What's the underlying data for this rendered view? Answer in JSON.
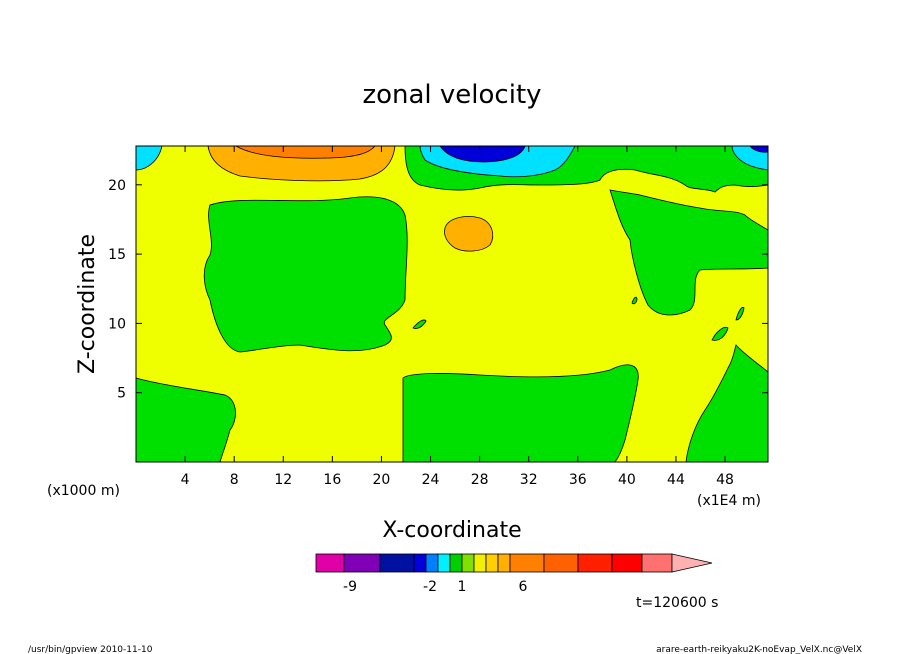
{
  "chart_data": {
    "type": "contour",
    "title": "zonal velocity",
    "xlabel": "X-coordinate",
    "ylabel": "Z-coordinate",
    "x_unit_label": "(x1000 m)",
    "x_scale_label": "(x1E4 m)",
    "xlim": [
      0,
      51.5
    ],
    "ylim": [
      0,
      22.8
    ],
    "x_ticks": [
      4,
      8,
      12,
      16,
      20,
      24,
      28,
      32,
      36,
      40,
      44,
      48
    ],
    "y_ticks": [
      5,
      10,
      15,
      20
    ],
    "grid": false,
    "colorbar": {
      "colors": [
        "#e000a8",
        "#8000b8",
        "#0010a0",
        "#0000d8",
        "#0080ff",
        "#00f0ff",
        "#00d000",
        "#80e000",
        "#f0f000",
        "#ffd000",
        "#ffb000",
        "#ff8000",
        "#ff6000",
        "#ff2000",
        "#ff0000",
        "#ff7070",
        "#ffb0b0"
      ],
      "labels": [
        "-9",
        "-2",
        "1",
        "6"
      ]
    },
    "time_label": "t=120600 s",
    "regions": [
      {
        "level": "-1 to 0",
        "color": "#00e000",
        "x_range": [
          0,
          8
        ],
        "z_range": [
          0,
          6.5
        ],
        "desc": "bottom-left green"
      },
      {
        "level": "-1 to 0",
        "color": "#00e000",
        "x_range": [
          5.5,
          22.5
        ],
        "z_range": [
          7.5,
          19.5
        ],
        "desc": "central-left green blob"
      },
      {
        "level": "-1 to 0",
        "color": "#00e000",
        "x_range": [
          21.5,
          40.5
        ],
        "z_range": [
          0,
          7.5
        ],
        "desc": "bottom-center green"
      },
      {
        "level": "-1 to 0",
        "color": "#00e000",
        "x_range": [
          22,
          51.5
        ],
        "z_range": [
          12.5,
          22.8
        ],
        "desc": "upper-right green"
      },
      {
        "level": "-1 to 0",
        "color": "#00e000",
        "x_range": [
          45,
          51.5
        ],
        "z_range": [
          0,
          8.5
        ],
        "desc": "bottom-right green"
      },
      {
        "level": "2 to 3",
        "color": "#ffb000",
        "x_range": [
          6.5,
          21
        ],
        "z_range": [
          20.5,
          22.8
        ],
        "desc": "top orange"
      },
      {
        "level": "4 to 5",
        "color": "#ff8000",
        "x_range": [
          9,
          19
        ],
        "z_range": [
          21.5,
          22.8
        ],
        "desc": "top dark orange core"
      },
      {
        "level": "2 to 3",
        "color": "#ffb000",
        "x_range": [
          25,
          29
        ],
        "z_range": [
          15.5,
          17.5
        ],
        "desc": "small orange patch"
      },
      {
        "level": "-3 to -2",
        "color": "#00e0ff",
        "x_range": [
          23,
          36
        ],
        "z_range": [
          21,
          22.8
        ],
        "desc": "top cyan"
      },
      {
        "level": "-5 to -4",
        "color": "#0000d8",
        "x_range": [
          26,
          31
        ],
        "z_range": [
          21.8,
          22.8
        ],
        "desc": "top blue core"
      },
      {
        "level": "-3 to -2",
        "color": "#00e0ff",
        "x_range": [
          0,
          2
        ],
        "z_range": [
          21.2,
          22.8
        ],
        "desc": "top-left cyan"
      },
      {
        "level": "-3 to -2",
        "color": "#00e0ff",
        "x_range": [
          48.5,
          51.5
        ],
        "z_range": [
          21.2,
          22.8
        ],
        "desc": "top-right cyan"
      }
    ]
  },
  "footer": {
    "left": "/usr/bin/gpview   2010-11-10",
    "right": "arare-earth-reikyaku2K-noEvap_VelX.nc@VelX"
  }
}
